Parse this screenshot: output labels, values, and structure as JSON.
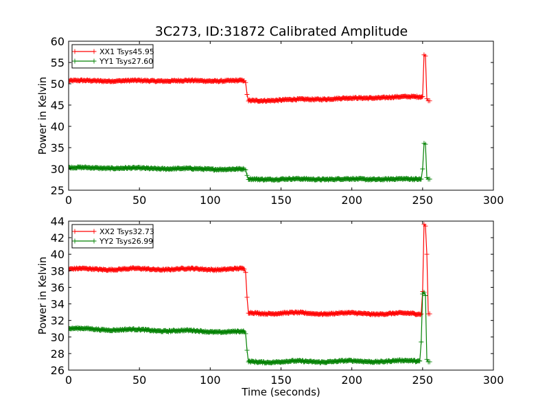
{
  "title": "3C273, ID:31872 Calibrated Amplitude",
  "chart_data": [
    {
      "type": "line",
      "xlabel": "",
      "ylabel": "Power in Kelvin",
      "xlim": [
        0,
        300
      ],
      "ylim": [
        25,
        60
      ],
      "xticks": [
        0,
        50,
        100,
        150,
        200,
        250,
        300
      ],
      "yticks": [
        25,
        30,
        35,
        40,
        45,
        50,
        55,
        60
      ],
      "grid": false,
      "legend_position": "top-left",
      "series": [
        {
          "name": "XX1 Tsys45.95",
          "color": "#ff0000",
          "marker": "plus",
          "x": [
            0,
            124,
            125,
            126,
            127,
            250,
            251,
            252,
            253,
            254,
            255
          ],
          "y": [
            50.7,
            50.7,
            50.3,
            47.5,
            46.0,
            47.0,
            56.8,
            56.5,
            46.5,
            46.0,
            46.0
          ]
        },
        {
          "name": "YY1 Tsys27.60",
          "color": "#008000",
          "marker": "plus",
          "x": [
            0,
            124,
            125,
            126,
            127,
            249,
            250,
            251,
            252,
            253,
            254,
            255
          ],
          "y": [
            30.3,
            29.9,
            29.8,
            28.5,
            27.6,
            27.6,
            30.0,
            36.0,
            35.8,
            28.0,
            27.6,
            27.6
          ]
        }
      ]
    },
    {
      "type": "line",
      "xlabel": "Time (seconds)",
      "ylabel": "Power in Kelvin",
      "xlim": [
        0,
        300
      ],
      "ylim": [
        26,
        44
      ],
      "xticks": [
        0,
        50,
        100,
        150,
        200,
        250,
        300
      ],
      "yticks": [
        26,
        28,
        30,
        32,
        34,
        36,
        38,
        40,
        42,
        44
      ],
      "grid": false,
      "legend_position": "top-left",
      "series": [
        {
          "name": "XX2 Tsys32.73",
          "color": "#ff0000",
          "marker": "plus",
          "x": [
            0,
            124,
            125,
            126,
            127,
            249,
            250,
            251,
            252,
            253,
            254,
            255
          ],
          "y": [
            38.2,
            38.2,
            37.8,
            34.8,
            32.9,
            32.8,
            35.5,
            43.6,
            43.4,
            40.0,
            32.8,
            32.8
          ]
        },
        {
          "name": "YY2 Tsys26.99",
          "color": "#008000",
          "marker": "plus",
          "x": [
            0,
            124,
            125,
            126,
            127,
            248,
            249,
            250,
            251,
            252,
            253,
            254,
            255
          ],
          "y": [
            31.0,
            30.6,
            30.4,
            28.4,
            27.0,
            27.1,
            29.4,
            35.2,
            35.4,
            35.0,
            27.3,
            27.0,
            27.0
          ]
        }
      ]
    }
  ]
}
